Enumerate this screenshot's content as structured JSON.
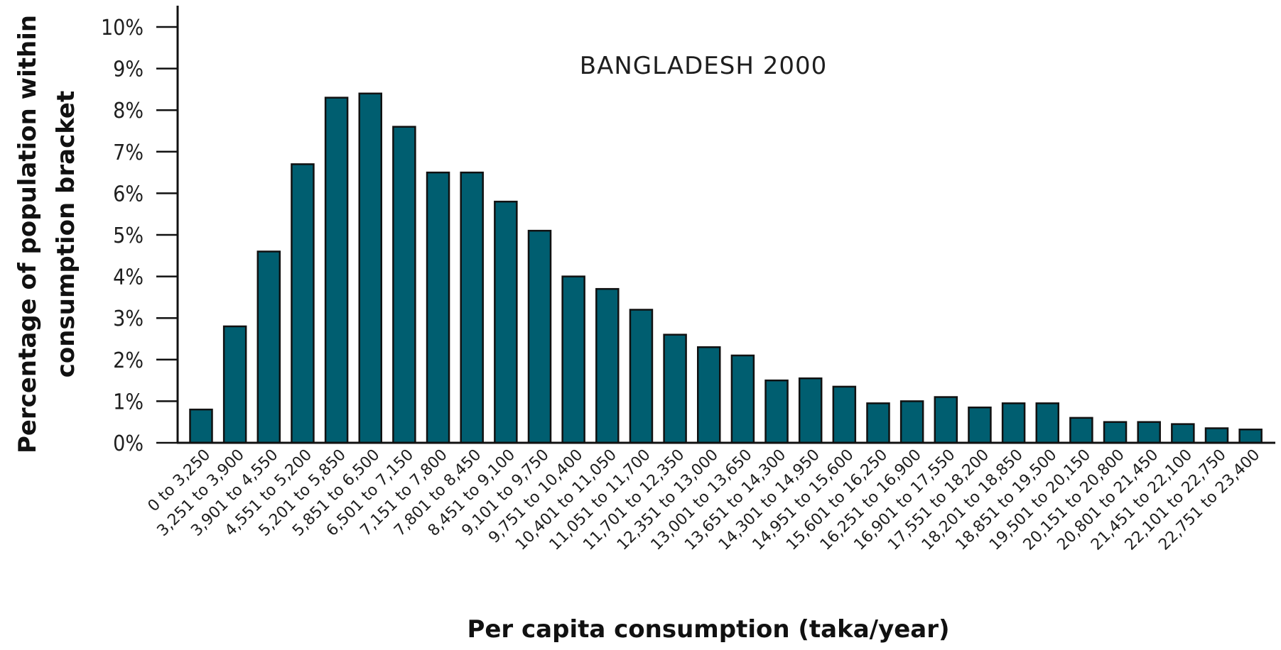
{
  "chart_data": {
    "type": "bar",
    "title": "BANGLADESH 2000",
    "xlabel": "Per capita consumption (taka/year)",
    "ylabel": "Percentage of population within consumption bracket",
    "ylabel_lines": [
      "Percentage of population within",
      "consumption bracket"
    ],
    "ylim": [
      0,
      10
    ],
    "yticks": [
      {
        "value": 0,
        "label": "0%"
      },
      {
        "value": 1,
        "label": "1%"
      },
      {
        "value": 2,
        "label": "2%"
      },
      {
        "value": 3,
        "label": "3%"
      },
      {
        "value": 4,
        "label": "4%"
      },
      {
        "value": 5,
        "label": "5%"
      },
      {
        "value": 6,
        "label": "6%"
      },
      {
        "value": 7,
        "label": "7%"
      },
      {
        "value": 8,
        "label": "8%"
      },
      {
        "value": 9,
        "label": "9%"
      },
      {
        "value": 10,
        "label": "10%"
      }
    ],
    "categories": [
      "0 to 3,250",
      "3,251 to 3,900",
      "3,901 to 4,550",
      "4,551 to 5,200",
      "5,201 to 5,850",
      "5,851 to 6,500",
      "6,501 to 7,150",
      "7,151 to 7,800",
      "7,801 to 8,450",
      "8,451 to 9,100",
      "9,101 to 9,750",
      "9,751 to 10,400",
      "10,401 to 11,050",
      "11,051 to 11,700",
      "11,701 to 12,350",
      "12,351 to 13,000",
      "13,001 to 13,650",
      "13,651 to 14,300",
      "14,301 to 14,950",
      "14,951 to 15,600",
      "15,601 to 16,250",
      "16,251 to 16,900",
      "16,901 to 17,550",
      "17,551 to 18,200",
      "18,201 to 18,850",
      "18,851 to 19,500",
      "19,501 to 20,150",
      "20,151 to 20,800",
      "20,801 to 21,450",
      "21,451 to 22,100",
      "22,101 to 22,750",
      "22,751 to 23,400"
    ],
    "values": [
      0.8,
      2.8,
      4.6,
      6.7,
      8.3,
      8.4,
      7.6,
      6.5,
      6.5,
      5.8,
      5.1,
      4.0,
      3.7,
      3.2,
      2.6,
      2.3,
      2.1,
      1.5,
      1.55,
      1.35,
      0.95,
      1.0,
      1.1,
      0.85,
      0.95,
      0.95,
      0.6,
      0.5,
      0.5,
      0.45,
      0.35,
      0.32
    ],
    "grid": false,
    "legend": "none",
    "bar_color": "#005e70",
    "bar_edge_color": "#111111",
    "axis_color": "#111111"
  }
}
